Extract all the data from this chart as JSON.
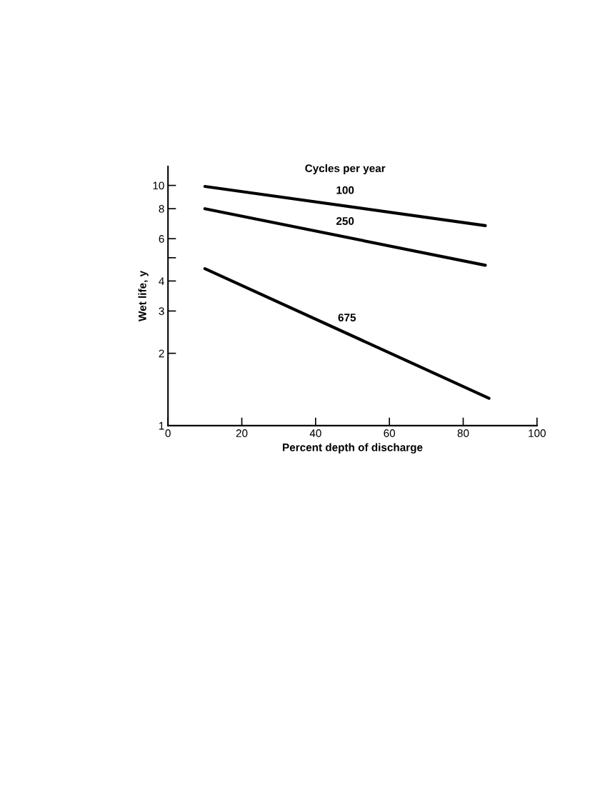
{
  "chart_data": {
    "type": "line",
    "xlabel": "Percent depth of discharge",
    "ylabel": "Wet life, y",
    "legend_title": "Cycles per year",
    "log": "y",
    "grid": false,
    "legend": false,
    "marker": "none",
    "line_style": "solid",
    "xlim": [
      0,
      100
    ],
    "ylim": [
      1,
      12
    ],
    "xticks": [
      0,
      20,
      40,
      60,
      80,
      100
    ],
    "yticks": [
      1,
      2,
      3,
      4,
      {
        "value": 5,
        "label": null
      },
      6,
      8,
      10
    ],
    "series": [
      {
        "name": "100",
        "color": "#000000",
        "x": [
          10,
          86
        ],
        "values": [
          9.9,
          6.8
        ]
      },
      {
        "name": "250",
        "color": "#000000",
        "x": [
          10,
          86
        ],
        "values": [
          8.0,
          4.65
        ]
      },
      {
        "name": "675",
        "color": "#000000",
        "x": [
          10,
          87
        ],
        "values": [
          4.5,
          1.3
        ]
      }
    ]
  }
}
